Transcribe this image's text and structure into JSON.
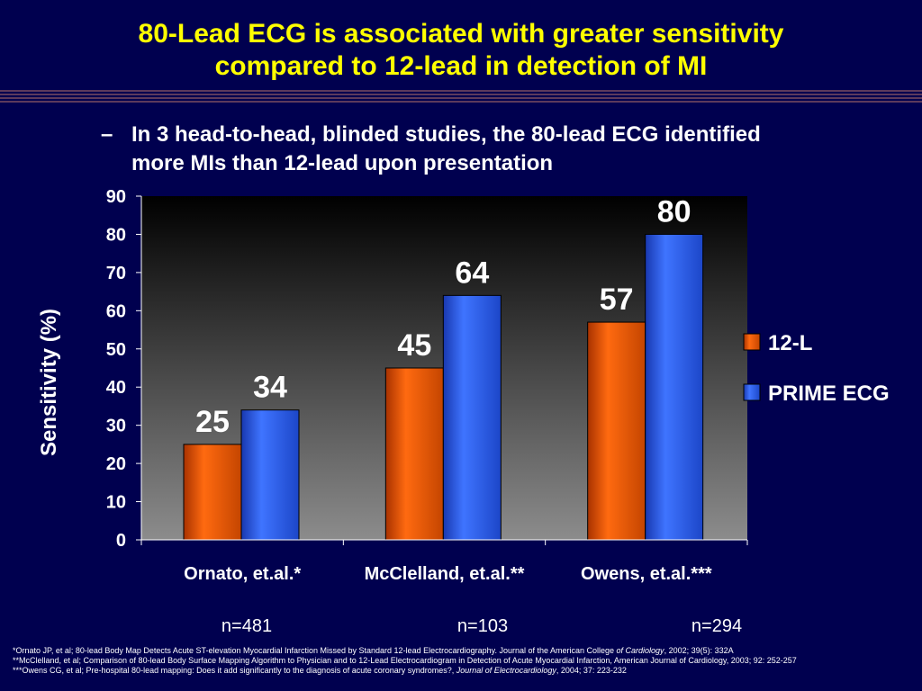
{
  "slide": {
    "title_line1": "80-Lead ECG is associated with greater sensitivity",
    "title_line2": "compared to 12-lead in detection of MI",
    "bullet_dash": "–",
    "bullet_text": "In 3 head-to-head, blinded studies, the 80-lead ECG identified more MIs than 12-lead upon presentation"
  },
  "chart_data": {
    "type": "bar",
    "categories": [
      "Ornato, et.al.*",
      "McClelland, et.al.**",
      "Owens, et.al.***"
    ],
    "sample_sizes": [
      "n=481",
      "n=103",
      "n=294"
    ],
    "series": [
      {
        "name": "12-L",
        "values": [
          25,
          45,
          57
        ],
        "color": "#e85a0c"
      },
      {
        "name": "PRIME ECG",
        "values": [
          34,
          64,
          80
        ],
        "color": "#2a5cf0"
      }
    ],
    "ylabel": "Sensitivity (%)",
    "xlabel": "",
    "ylim": [
      0,
      90
    ],
    "yticks": [
      0,
      10,
      20,
      30,
      40,
      50,
      60,
      70,
      80,
      90
    ],
    "legend_position": "right",
    "grid": false,
    "data_labels": true
  },
  "footnotes": {
    "line1_main": "*Ornato JP, et al; 80-lead Body Map Detects Acute ST-elevation Myocardial Infarction Missed by Standard 12-lead Electrocardiography. Journal of the American College ",
    "line1_ital": "of Cardiology",
    "line1_end": ", 2002; 39(5): 332A",
    "line2": "**McClelland, et al; Comparison of 80-lead Body Surface Mapping Algorithm to Physician and to 12-Lead Electrocardiogram in Detection of Acute Myocardial Infarction, American Journal of Cardiology, 2003; 92: 252-257",
    "line3_main": "***Owens CG, et al; Pre-hospital 80-lead mapping: Does it add significantly to the diagnosis of acute coronary syndromes?, ",
    "line3_ital": "Journal of Electrocardiology",
    "line3_end": ", 2004; 37: 223-232"
  }
}
